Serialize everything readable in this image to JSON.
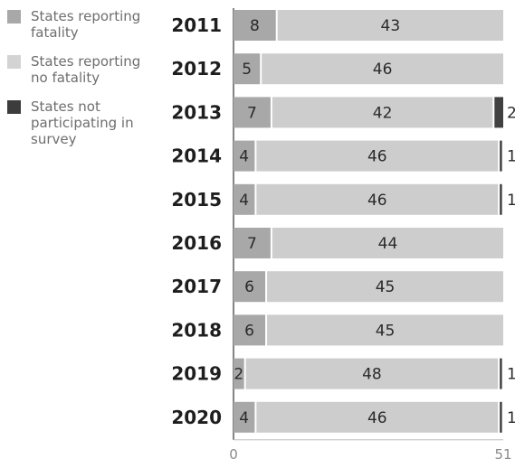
{
  "chart_data": {
    "type": "bar",
    "orientation": "horizontal",
    "stacked": true,
    "categories": [
      "2011",
      "2012",
      "2013",
      "2014",
      "2015",
      "2016",
      "2017",
      "2018",
      "2019",
      "2020"
    ],
    "series": [
      {
        "name": "States reporting fatality",
        "color": "#a8a8a8",
        "values": [
          8,
          5,
          7,
          4,
          4,
          7,
          6,
          6,
          2,
          4
        ]
      },
      {
        "name": "States reporting no fatality",
        "color": "#cdcdcd",
        "values": [
          43,
          46,
          42,
          46,
          46,
          44,
          45,
          45,
          48,
          46
        ]
      },
      {
        "name": "States not participating in survey",
        "color": "#404040",
        "values": [
          0,
          0,
          2,
          1,
          1,
          0,
          0,
          0,
          1,
          1
        ]
      }
    ],
    "xlim": [
      0,
      51
    ],
    "xticks": [
      "0",
      "51"
    ],
    "grid": false,
    "legend_position": "top-left"
  },
  "legend": [
    {
      "label": "States reporting\nfatality",
      "color": "#a8a8a8"
    },
    {
      "label": "States reporting\nno fatality",
      "color": "#d3d3d3"
    },
    {
      "label": "States not\nparticipating in\nsurvey",
      "color": "#3c3c3c"
    }
  ]
}
